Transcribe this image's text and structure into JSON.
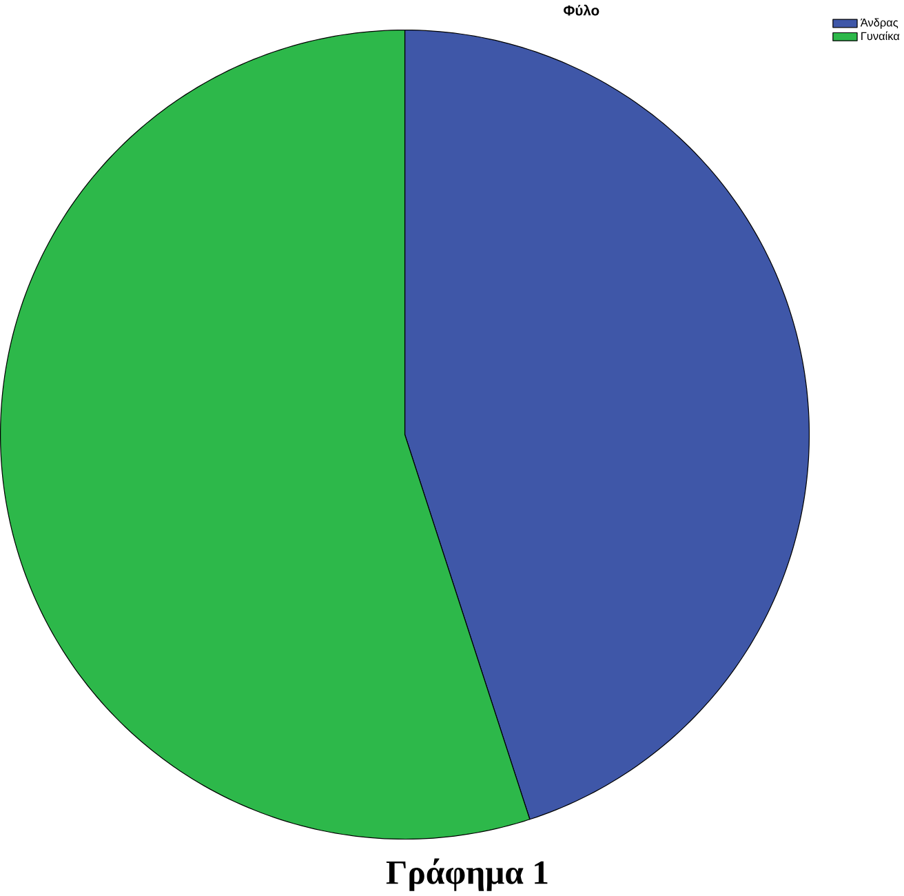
{
  "chart_data": {
    "type": "pie",
    "title": "Φύλο",
    "categories": [
      "Άνδρας",
      "Γυναίκα"
    ],
    "values": [
      45,
      55
    ],
    "colors": [
      "#3f57a8",
      "#2db84a"
    ],
    "legend": "top right",
    "annotations": [
      "Γράφημα 1"
    ]
  }
}
